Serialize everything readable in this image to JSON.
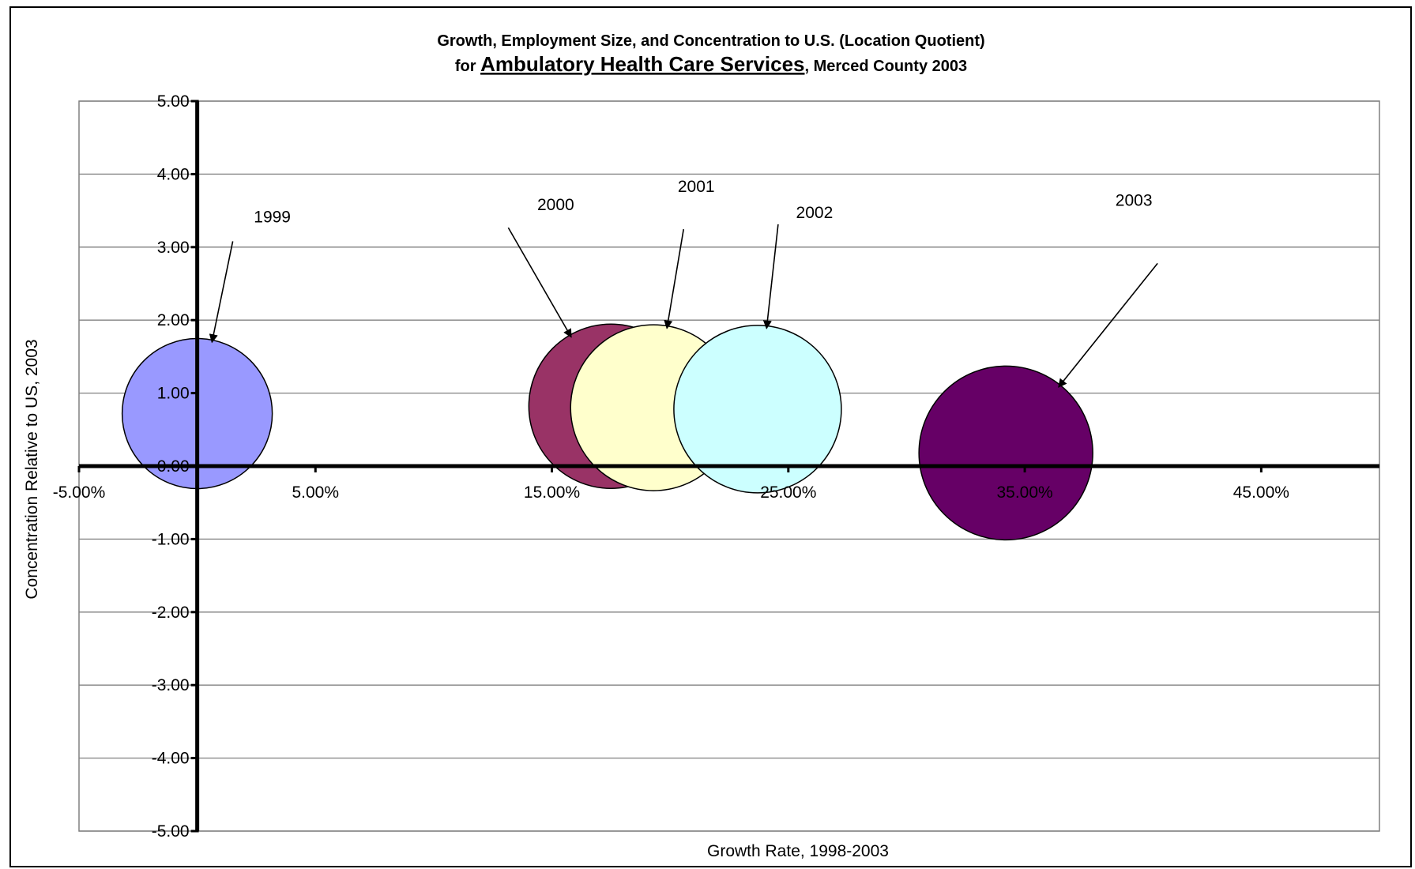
{
  "chart_data": {
    "type": "bubble",
    "title": {
      "line1": "Growth, Employment Size, and Concentration to U.S. (Location Quotient)",
      "line2_prefix": "for ",
      "line2_emphasis": "Ambulatory Health Care Services",
      "line2_suffix": ", Merced County 2003"
    },
    "xlabel": "Growth Rate, 1998-2003",
    "ylabel": "Concentration Relative to US, 2003",
    "xlim": [
      -0.05,
      0.5
    ],
    "ylim": [
      -5,
      5
    ],
    "x_tick_values": [
      -0.05,
      0.05,
      0.15,
      0.25,
      0.35,
      0.45
    ],
    "x_tick_labels": [
      "-5.00%",
      "5.00%",
      "15.00%",
      "25.00%",
      "35.00%",
      "45.00%"
    ],
    "y_tick_values": [
      5,
      4,
      3,
      2,
      1,
      0,
      -1,
      -2,
      -3,
      -4,
      -5
    ],
    "y_tick_labels": [
      "5.00",
      "4.00",
      "3.00",
      "2.00",
      "1.00",
      "0.00",
      "-1.00",
      "-2.00",
      "-3.00",
      "-4.00",
      "-5.00"
    ],
    "grid": true,
    "series": [
      {
        "name": "1999",
        "x": 0.0,
        "y": 0.72,
        "size": 95,
        "color": "#9999ff"
      },
      {
        "name": "2000",
        "x": 0.175,
        "y": 0.82,
        "size": 104,
        "color": "#993366"
      },
      {
        "name": "2001",
        "x": 0.193,
        "y": 0.8,
        "size": 105,
        "color": "#ffffcc"
      },
      {
        "name": "2002",
        "x": 0.237,
        "y": 0.78,
        "size": 106,
        "color": "#ccffff"
      },
      {
        "name": "2003",
        "x": 0.342,
        "y": 0.18,
        "size": 110,
        "color": "#660066"
      }
    ]
  }
}
